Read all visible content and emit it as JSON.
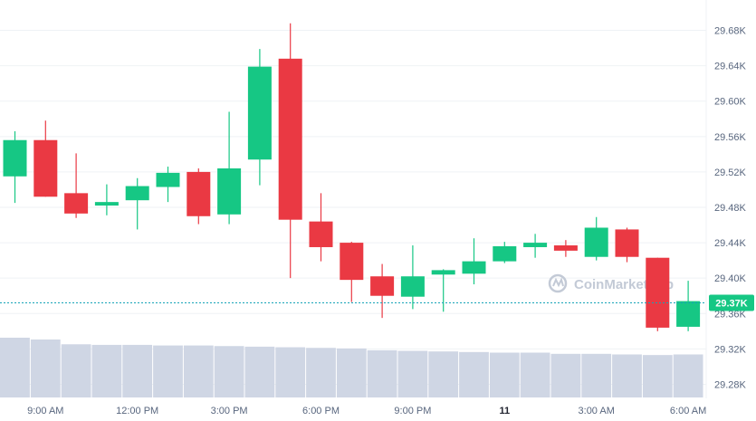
{
  "watermark": "CoinMarketCap",
  "colors": {
    "up": "#16c784",
    "down": "#ea3943",
    "volume": "#cfd6e4",
    "grid": "#eff2f5",
    "current_line": "#16a3b8",
    "badge": "#16c784"
  },
  "chart_data": {
    "type": "candlestick",
    "title": "",
    "xlabel": "",
    "ylabel": "",
    "ylim": [
      29260,
      29700
    ],
    "y_ticks": [
      "29.28K",
      "29.32K",
      "29.36K",
      "29.40K",
      "29.44K",
      "29.48K",
      "29.52K",
      "29.56K",
      "29.60K",
      "29.64K",
      "29.68K"
    ],
    "y_tick_values": [
      29280,
      29320,
      29360,
      29400,
      29440,
      29480,
      29520,
      29560,
      29600,
      29640,
      29680
    ],
    "x_ticks": [
      "9:00 AM",
      "12:00 PM",
      "3:00 PM",
      "6:00 PM",
      "9:00 PM",
      "11",
      "3:00 AM",
      "6:00 AM"
    ],
    "x_tick_index": [
      1,
      4,
      7,
      10,
      13,
      16,
      19,
      22
    ],
    "current_price": 29372,
    "current_price_label": "29.37K",
    "candles": [
      {
        "o": 29515,
        "h": 29566,
        "l": 29485,
        "c": 29556
      },
      {
        "o": 29556,
        "h": 29578,
        "l": 29492,
        "c": 29492
      },
      {
        "o": 29496,
        "h": 29541,
        "l": 29468,
        "c": 29473
      },
      {
        "o": 29482,
        "h": 29506,
        "l": 29471,
        "c": 29486
      },
      {
        "o": 29488,
        "h": 29513,
        "l": 29455,
        "c": 29504
      },
      {
        "o": 29503,
        "h": 29526,
        "l": 29486,
        "c": 29519
      },
      {
        "o": 29520,
        "h": 29524,
        "l": 29461,
        "c": 29470
      },
      {
        "o": 29472,
        "h": 29588,
        "l": 29461,
        "c": 29524
      },
      {
        "o": 29534,
        "h": 29659,
        "l": 29505,
        "c": 29639
      },
      {
        "o": 29648,
        "h": 29688,
        "l": 29400,
        "c": 29466
      },
      {
        "o": 29464,
        "h": 29496,
        "l": 29419,
        "c": 29435
      },
      {
        "o": 29440,
        "h": 29441,
        "l": 29373,
        "c": 29398
      },
      {
        "o": 29402,
        "h": 29416,
        "l": 29355,
        "c": 29380
      },
      {
        "o": 29379,
        "h": 29437,
        "l": 29365,
        "c": 29402
      },
      {
        "o": 29404,
        "h": 29410,
        "l": 29362,
        "c": 29409
      },
      {
        "o": 29405,
        "h": 29445,
        "l": 29393,
        "c": 29419
      },
      {
        "o": 29419,
        "h": 29441,
        "l": 29417,
        "c": 29436
      },
      {
        "o": 29435,
        "h": 29450,
        "l": 29423,
        "c": 29440
      },
      {
        "o": 29437,
        "h": 29443,
        "l": 29424,
        "c": 29431
      },
      {
        "o": 29424,
        "h": 29469,
        "l": 29420,
        "c": 29457
      },
      {
        "o": 29455,
        "h": 29457,
        "l": 29418,
        "c": 29424
      },
      {
        "o": 29423,
        "h": 29423,
        "l": 29340,
        "c": 29344
      },
      {
        "o": 29345,
        "h": 29397,
        "l": 29340,
        "c": 29374
      }
    ],
    "volume_relative": [
      1.0,
      0.97,
      0.89,
      0.88,
      0.88,
      0.87,
      0.87,
      0.86,
      0.85,
      0.84,
      0.83,
      0.82,
      0.79,
      0.78,
      0.77,
      0.76,
      0.75,
      0.75,
      0.73,
      0.73,
      0.72,
      0.71,
      0.72
    ]
  }
}
